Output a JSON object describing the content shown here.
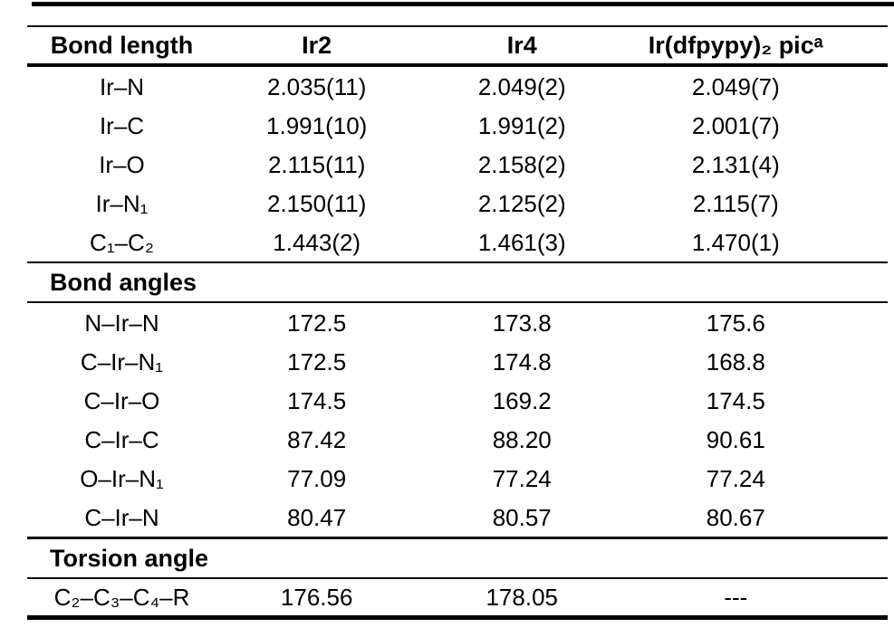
{
  "page": {
    "background_color": "#ffffff",
    "text_color": "#000000",
    "rule_color": "#000000"
  },
  "table": {
    "header": {
      "bond_length": "Bond length",
      "ir2": "Ir2",
      "ir4": "Ir4",
      "ref_compound": "Ir(dfpypy)₂ picᵃ"
    },
    "bond_lengths": {
      "rows": [
        {
          "label": "Ir–N",
          "ir2": "2.035(11)",
          "ir4": "2.049(2)",
          "ref": "2.049(7)"
        },
        {
          "label": "Ir–C",
          "ir2": "1.991(10)",
          "ir4": "1.991(2)",
          "ref": "2.001(7)"
        },
        {
          "label": "Ir–O",
          "ir2": "2.115(11)",
          "ir4": "2.158(2)",
          "ref": "2.131(4)"
        },
        {
          "label": "Ir–N₁",
          "ir2": "2.150(11)",
          "ir4": "2.125(2)",
          "ref": "2.115(7)"
        },
        {
          "label": "C₁–C₂",
          "ir2": "1.443(2)",
          "ir4": "1.461(3)",
          "ref": "1.470(1)"
        }
      ]
    },
    "bond_angles": {
      "title": "Bond angles",
      "rows": [
        {
          "label": "N–Ir–N",
          "ir2": "172.5",
          "ir4": "173.8",
          "ref": "175.6"
        },
        {
          "label": "C–Ir–N₁",
          "ir2": "172.5",
          "ir4": "174.8",
          "ref": "168.8"
        },
        {
          "label": "C–Ir–O",
          "ir2": "174.5",
          "ir4": "169.2",
          "ref": "174.5"
        },
        {
          "label": "C–Ir–C",
          "ir2": "87.42",
          "ir4": "88.20",
          "ref": "90.61"
        },
        {
          "label": "O–Ir–N₁",
          "ir2": "77.09",
          "ir4": "77.24",
          "ref": "77.24"
        },
        {
          "label": "C–Ir–N",
          "ir2": "80.47",
          "ir4": "80.57",
          "ref": "80.67"
        }
      ]
    },
    "torsion_angle": {
      "title": "Torsion angle",
      "rows": [
        {
          "label": "C₂–C₃–C₄–R",
          "ir2": "176.56",
          "ir4": "178.05",
          "ref": "---"
        }
      ]
    }
  }
}
